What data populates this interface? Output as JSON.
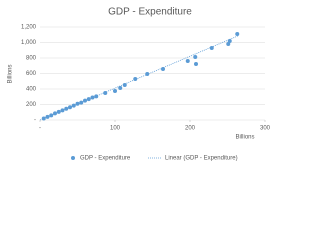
{
  "chart_data": {
    "type": "scatter",
    "title": "GDP - Expenditure",
    "x_label": "Billions",
    "y_label": "Billions",
    "series": [
      {
        "name": "GDP - Expenditure",
        "color": "#5b9bd5",
        "x": [
          5,
          10,
          15,
          20,
          25,
          30,
          35,
          40,
          45,
          50,
          55,
          60,
          65,
          70,
          75,
          87,
          100,
          107,
          113,
          127,
          143,
          164,
          197,
          207,
          208,
          229,
          251,
          253,
          263
        ],
        "values": [
          20,
          40,
          60,
          85,
          105,
          125,
          145,
          165,
          185,
          210,
          225,
          250,
          270,
          290,
          305,
          348,
          374,
          413,
          452,
          529,
          594,
          658,
          761,
          813,
          723,
          929,
          981,
          1019,
          1110
        ]
      }
    ],
    "trendline": {
      "name": "Linear (GDP - Expenditure)",
      "color": "#5b9bd5",
      "x": [
        0,
        265
      ],
      "values": [
        0,
        1090
      ]
    },
    "xlim": [
      0,
      300
    ],
    "ylim": [
      0,
      1200
    ],
    "xticks": [
      {
        "value": 0,
        "label": "-"
      },
      100,
      200,
      300
    ],
    "yticks": [
      {
        "value": 0,
        "label": "-"
      },
      200,
      400,
      600,
      800,
      {
        "value": 1000,
        "label": "1,000"
      },
      {
        "value": 1200,
        "label": "1,200"
      }
    ],
    "grid": true,
    "legend": "bottom"
  }
}
